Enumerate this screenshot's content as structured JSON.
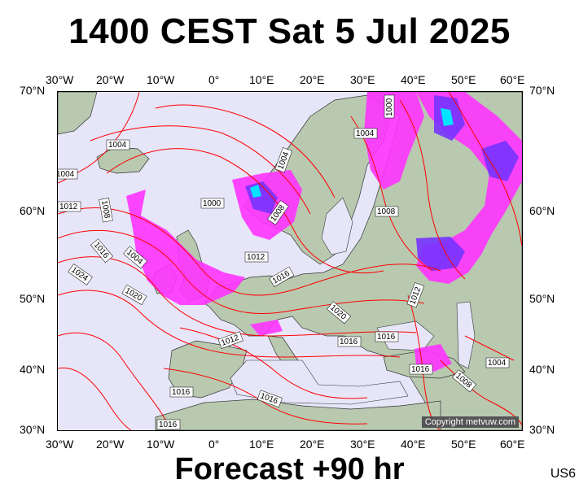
{
  "header": {
    "title": "1400 CEST Sat 5 Jul 2025"
  },
  "footer": {
    "forecast": "Forecast +90 hr",
    "model": "US6"
  },
  "map": {
    "copyright": "Copyright metvuw.com",
    "lon_labels": [
      "30°W",
      "20°W",
      "10°W",
      "0°",
      "10°E",
      "20°E",
      "30°E",
      "40°E",
      "50°E",
      "60°E"
    ],
    "lat_labels": [
      "70°N",
      "60°N",
      "50°N",
      "40°N",
      "30°N"
    ],
    "isobar_labels": [
      "1004",
      "1004",
      "1000",
      "1004",
      "1004",
      "1008",
      "1000",
      "1012",
      "1008",
      "1004",
      "1016",
      "1012",
      "1008",
      "1024",
      "1020",
      "1016",
      "1020",
      "1012",
      "1016",
      "1016",
      "1016",
      "1012",
      "1008",
      "1004",
      "1016",
      "1016",
      "1016"
    ],
    "colors": {
      "background": "#e6e6f8",
      "isobar": "#ff0000",
      "rain_low": "#ff33ff",
      "rain_mid": "#7733ff",
      "rain_high": "#00e5ff",
      "land": "#b8c9b0"
    }
  }
}
